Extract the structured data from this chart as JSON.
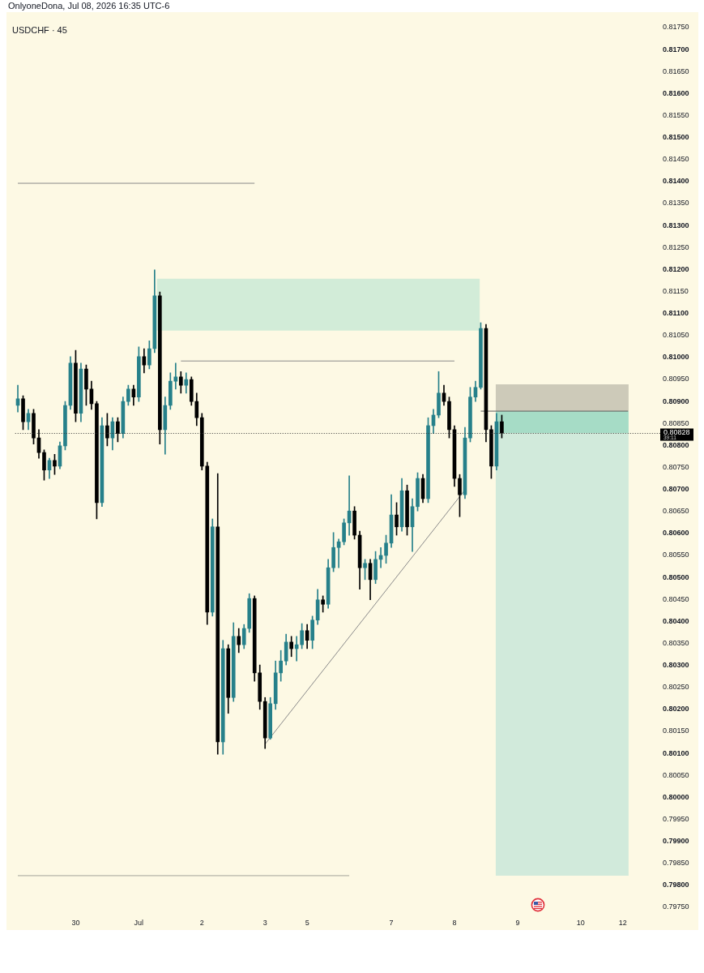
{
  "chart_data": {
    "type": "candlestick",
    "title": "USDCHF · 45",
    "annotations": [
      "OnlyoneDona, Jul 08, 2026 16:35 UTC-6",
      "39:11"
    ],
    "categories": [
      null,
      null,
      null,
      null,
      null,
      null,
      null,
      null,
      null,
      null,
      null,
      "30",
      null,
      null,
      null,
      null,
      null,
      null,
      null,
      null,
      null,
      null,
      null,
      "Jul",
      null,
      null,
      null,
      null,
      null,
      null,
      null,
      null,
      null,
      null,
      null,
      "2",
      null,
      null,
      null,
      null,
      null,
      null,
      null,
      null,
      null,
      null,
      null,
      "3",
      null,
      null,
      null,
      null,
      null,
      null,
      null,
      "5",
      null,
      null,
      null,
      null,
      null,
      null,
      null,
      null,
      null,
      null,
      null,
      null,
      null,
      null,
      null,
      "7",
      null,
      null,
      null,
      null,
      null,
      null,
      null,
      null,
      null,
      null,
      null,
      "8",
      null,
      null,
      null,
      null,
      null,
      null,
      null,
      null,
      null,
      null,
      null,
      "9",
      null,
      null,
      null,
      null,
      null,
      null,
      null,
      null,
      null,
      null,
      null,
      "10",
      null,
      null,
      null,
      null,
      null,
      null,
      null,
      "12",
      null,
      null
    ],
    "ohlc": [
      [
        0.80891,
        0.80937,
        0.80876,
        0.80906
      ],
      [
        0.80906,
        0.80913,
        0.80836,
        0.80854
      ],
      [
        0.80854,
        0.80882,
        0.80836,
        0.80873
      ],
      [
        0.80873,
        0.80882,
        0.80803,
        0.80817
      ],
      [
        0.80817,
        0.80836,
        0.80771,
        0.80784
      ],
      [
        0.80784,
        0.8079,
        0.80721,
        0.80744
      ],
      [
        0.80744,
        0.80771,
        0.80725,
        0.80766
      ],
      [
        0.80766,
        0.8078,
        0.80734,
        0.80753
      ],
      [
        0.80753,
        0.80808,
        0.80747,
        0.80799
      ],
      [
        0.80799,
        0.809,
        0.8079,
        0.80891
      ],
      [
        0.80891,
        0.81002,
        0.80882,
        0.80987
      ],
      [
        0.80987,
        0.81016,
        0.80854,
        0.80873
      ],
      [
        0.80873,
        0.80987,
        0.80854,
        0.80974
      ],
      [
        0.80974,
        0.80983,
        0.80891,
        0.80928
      ],
      [
        0.80928,
        0.80946,
        0.80882,
        0.80895
      ],
      [
        0.80895,
        0.809,
        0.80633,
        0.8067
      ],
      [
        0.8067,
        0.80863,
        0.80661,
        0.80845
      ],
      [
        0.80845,
        0.80873,
        0.80799,
        0.80817
      ],
      [
        0.80817,
        0.80863,
        0.8079,
        0.80854
      ],
      [
        0.80854,
        0.80863,
        0.80808,
        0.80827
      ],
      [
        0.80827,
        0.8091,
        0.80817,
        0.809
      ],
      [
        0.809,
        0.80937,
        0.80891,
        0.80928
      ],
      [
        0.80928,
        0.80937,
        0.80891,
        0.8091
      ],
      [
        0.8091,
        0.81024,
        0.809,
        0.81002
      ],
      [
        0.81002,
        0.8102,
        0.80965,
        0.80983
      ],
      [
        0.80983,
        0.81038,
        0.80974,
        0.8102
      ],
      [
        0.8102,
        0.81199,
        0.81011,
        0.8114
      ],
      [
        0.8114,
        0.81149,
        0.80803,
        0.80836
      ],
      [
        0.80836,
        0.8091,
        0.8078,
        0.80891
      ],
      [
        0.80891,
        0.80965,
        0.80882,
        0.80946
      ],
      [
        0.80946,
        0.80987,
        0.80928,
        0.80956
      ],
      [
        0.80956,
        0.80968,
        0.80919,
        0.80937
      ],
      [
        0.80937,
        0.80965,
        0.80919,
        0.8095
      ],
      [
        0.8095,
        0.80956,
        0.80891,
        0.809
      ],
      [
        0.809,
        0.80919,
        0.80845,
        0.80863
      ],
      [
        0.80863,
        0.80873,
        0.80744,
        0.80753
      ],
      [
        0.80753,
        0.80762,
        0.80393,
        0.80421
      ],
      [
        0.80421,
        0.80633,
        0.80412,
        0.80615
      ],
      [
        0.80615,
        0.80736,
        0.80098,
        0.80126
      ],
      [
        0.80126,
        0.80357,
        0.80098,
        0.80338
      ],
      [
        0.80338,
        0.80347,
        0.80191,
        0.80227
      ],
      [
        0.80227,
        0.80397,
        0.80218,
        0.80366
      ],
      [
        0.80366,
        0.80384,
        0.80329,
        0.80347
      ],
      [
        0.80347,
        0.80393,
        0.80338,
        0.80384
      ],
      [
        0.80384,
        0.80463,
        0.80375,
        0.80452
      ],
      [
        0.80452,
        0.80458,
        0.80264,
        0.80283
      ],
      [
        0.80283,
        0.80301,
        0.802,
        0.80218
      ],
      [
        0.80218,
        0.80227,
        0.80111,
        0.80135
      ],
      [
        0.80135,
        0.80227,
        0.80132,
        0.80213
      ],
      [
        0.80213,
        0.8031,
        0.802,
        0.80283
      ],
      [
        0.80283,
        0.80334,
        0.80264,
        0.8031
      ],
      [
        0.8031,
        0.80371,
        0.80301,
        0.80353
      ],
      [
        0.80353,
        0.80366,
        0.8032,
        0.80338
      ],
      [
        0.80338,
        0.80366,
        0.8031,
        0.80347
      ],
      [
        0.80347,
        0.80395,
        0.80338,
        0.80379
      ],
      [
        0.80379,
        0.80393,
        0.80338,
        0.80357
      ],
      [
        0.80357,
        0.80412,
        0.80338,
        0.80403
      ],
      [
        0.80403,
        0.80473,
        0.80393,
        0.80449
      ],
      [
        0.80449,
        0.80458,
        0.80421,
        0.80439
      ],
      [
        0.80439,
        0.80541,
        0.8043,
        0.80522
      ],
      [
        0.80522,
        0.80602,
        0.80513,
        0.80568
      ],
      [
        0.80568,
        0.80587,
        0.80522,
        0.80581
      ],
      [
        0.80581,
        0.80633,
        0.80574,
        0.80624
      ],
      [
        0.80624,
        0.80731,
        0.80596,
        0.80651
      ],
      [
        0.80651,
        0.80661,
        0.80587,
        0.80596
      ],
      [
        0.80596,
        0.80605,
        0.80473,
        0.80522
      ],
      [
        0.80522,
        0.80541,
        0.80495,
        0.80532
      ],
      [
        0.80532,
        0.80541,
        0.80449,
        0.80495
      ],
      [
        0.80495,
        0.80559,
        0.80486,
        0.80541
      ],
      [
        0.80541,
        0.80568,
        0.80522,
        0.8055
      ],
      [
        0.8055,
        0.80596,
        0.80532,
        0.80578
      ],
      [
        0.80578,
        0.80688,
        0.80568,
        0.80642
      ],
      [
        0.80642,
        0.8067,
        0.80596,
        0.80615
      ],
      [
        0.80615,
        0.80725,
        0.80605,
        0.80697
      ],
      [
        0.80697,
        0.8071,
        0.80596,
        0.80615
      ],
      [
        0.80615,
        0.80679,
        0.80559,
        0.80661
      ],
      [
        0.80661,
        0.80738,
        0.80651,
        0.80725
      ],
      [
        0.80725,
        0.80734,
        0.8067,
        0.80679
      ],
      [
        0.80679,
        0.80863,
        0.8067,
        0.80845
      ],
      [
        0.80845,
        0.80882,
        0.80827,
        0.80869
      ],
      [
        0.80869,
        0.80968,
        0.80863,
        0.80919
      ],
      [
        0.80919,
        0.80937,
        0.80891,
        0.809
      ],
      [
        0.809,
        0.8091,
        0.80817,
        0.80836
      ],
      [
        0.80836,
        0.80845,
        0.80707,
        0.80725
      ],
      [
        0.80725,
        0.80734,
        0.80638,
        0.80688
      ],
      [
        0.80688,
        0.80841,
        0.80679,
        0.80817
      ],
      [
        0.80817,
        0.80932,
        0.80808,
        0.8091
      ],
      [
        0.8091,
        0.80946,
        0.809,
        0.80932
      ],
      [
        0.80932,
        0.81079,
        0.80928,
        0.81066
      ],
      [
        0.81066,
        0.81075,
        0.80808,
        0.80836
      ],
      [
        0.80836,
        0.80845,
        0.80725,
        0.80753
      ],
      [
        0.80753,
        0.80873,
        0.80744,
        0.80854
      ],
      [
        0.80854,
        0.80869,
        0.80817,
        0.80828
      ],
      null,
      null,
      null,
      null,
      null,
      null,
      null,
      null,
      null,
      null,
      null,
      null,
      null,
      null,
      null,
      null,
      null,
      null,
      null,
      null,
      null,
      null,
      null,
      null,
      null
    ],
    "colors": [
      "#26808a",
      "#000000",
      "#26808a",
      "#000000",
      "#000000",
      "#000000",
      "#26808a",
      "#000000",
      "#26808a",
      "#26808a",
      "#26808a",
      "#000000",
      "#26808a",
      "#000000",
      "#000000",
      "#000000",
      "#26808a",
      "#000000",
      "#26808a",
      "#000000",
      "#26808a",
      "#26808a",
      "#000000",
      "#26808a",
      "#000000",
      "#26808a",
      "#26808a",
      "#000000",
      "#26808a",
      "#26808a",
      "#26808a",
      "#000000",
      "#26808a",
      "#000000",
      "#000000",
      "#000000",
      "#000000",
      "#26808a",
      "#000000",
      "#26808a",
      "#000000",
      "#26808a",
      "#000000",
      "#26808a",
      "#26808a",
      "#000000",
      "#000000",
      "#000000",
      "#26808a",
      "#26808a",
      "#26808a",
      "#26808a",
      "#000000",
      "#26808a",
      "#26808a",
      "#000000",
      "#26808a",
      "#26808a",
      "#000000",
      "#26808a",
      "#26808a",
      "#26808a",
      "#26808a",
      "#26808a",
      "#000000",
      "#000000",
      "#26808a",
      "#000000",
      "#26808a",
      "#26808a",
      "#26808a",
      "#26808a",
      "#000000",
      "#26808a",
      "#000000",
      "#26808a",
      "#26808a",
      "#000000",
      "#26808a",
      "#26808a",
      "#26808a",
      "#000000",
      "#000000",
      "#000000",
      "#000000",
      "#26808a",
      "#26808a",
      "#26808a",
      "#26808a",
      "#000000",
      "#000000",
      "#26808a",
      "#000000",
      null,
      null,
      null,
      null,
      null,
      null,
      null,
      null,
      null,
      null,
      null,
      null,
      null,
      null,
      null,
      null,
      null,
      null,
      null,
      null,
      null,
      null,
      null,
      null,
      null
    ],
    "series": [
      {
        "type": "line",
        "color": "#8a8a8a",
        "values": [
          0.81396,
          null,
          null,
          null,
          null,
          null,
          null,
          null,
          null,
          null,
          null,
          null,
          null,
          null,
          null,
          null,
          null,
          null,
          null,
          null,
          null,
          null,
          null,
          null,
          null,
          null,
          null,
          null,
          null,
          null,
          null,
          null,
          null,
          null,
          null,
          null,
          null,
          null,
          null,
          null,
          null,
          null,
          null,
          null,
          null,
          0.81396,
          null,
          null,
          null,
          null,
          null,
          null,
          null,
          null,
          null,
          null,
          null,
          null,
          null,
          null,
          null,
          null,
          null,
          null,
          null,
          null,
          null,
          null,
          null,
          null,
          null,
          null,
          null,
          null,
          null,
          null,
          null,
          null,
          null,
          null,
          null,
          null,
          null,
          null,
          null,
          null,
          null,
          null,
          null,
          null,
          null,
          null,
          null,
          null,
          null,
          null,
          null,
          null,
          null,
          null,
          null,
          null,
          null,
          null,
          null,
          null,
          null,
          null,
          null,
          null,
          null,
          null,
          null,
          null,
          null,
          null,
          null,
          null
        ]
      },
      {
        "type": "line",
        "color": "#8a8a8a",
        "values": [
          null,
          null,
          null,
          null,
          null,
          null,
          null,
          null,
          null,
          null,
          null,
          null,
          null,
          null,
          null,
          null,
          null,
          null,
          null,
          null,
          null,
          null,
          null,
          null,
          null,
          null,
          null,
          null,
          null,
          null,
          null,
          0.80992,
          null,
          null,
          null,
          null,
          null,
          null,
          null,
          null,
          null,
          null,
          null,
          null,
          null,
          null,
          null,
          null,
          null,
          null,
          null,
          null,
          null,
          null,
          null,
          null,
          null,
          null,
          null,
          null,
          null,
          null,
          null,
          null,
          null,
          null,
          null,
          null,
          null,
          null,
          null,
          null,
          null,
          null,
          null,
          null,
          null,
          null,
          null,
          null,
          null,
          null,
          null,
          0.80992,
          null,
          null,
          null,
          null,
          null,
          null,
          null,
          null,
          null,
          null,
          null,
          null,
          null,
          null,
          null,
          null,
          null,
          null,
          null,
          null,
          null,
          null,
          null,
          null,
          null,
          null,
          null,
          null,
          null,
          null,
          null,
          null,
          null,
          null
        ]
      },
      {
        "type": "line",
        "color": "#8a8a8a",
        "values": [
          null,
          null,
          null,
          null,
          null,
          null,
          null,
          null,
          null,
          null,
          null,
          null,
          null,
          null,
          null,
          null,
          null,
          null,
          null,
          null,
          null,
          null,
          null,
          null,
          null,
          null,
          null,
          null,
          null,
          null,
          null,
          null,
          null,
          null,
          null,
          null,
          null,
          null,
          null,
          null,
          null,
          null,
          null,
          null,
          null,
          null,
          null,
          0.80121,
          null,
          null,
          null,
          null,
          null,
          null,
          null,
          null,
          null,
          null,
          null,
          null,
          null,
          null,
          null,
          null,
          null,
          null,
          null,
          null,
          null,
          null,
          null,
          null,
          null,
          null,
          null,
          null,
          null,
          null,
          null,
          null,
          null,
          null,
          null,
          null,
          null,
          0.80699,
          null,
          null,
          null,
          null,
          null,
          null,
          null,
          null,
          null,
          null,
          null,
          null,
          null,
          null,
          null,
          null,
          null,
          null,
          null,
          null,
          null,
          null,
          null,
          null,
          null,
          null,
          null,
          null,
          null,
          null,
          null,
          null
        ]
      },
      {
        "type": "line",
        "color": "#a3a39a",
        "values": [
          0.79822,
          null,
          null,
          null,
          null,
          null,
          null,
          null,
          null,
          null,
          null,
          null,
          null,
          null,
          null,
          null,
          null,
          null,
          null,
          null,
          null,
          null,
          null,
          null,
          null,
          null,
          null,
          null,
          null,
          null,
          null,
          null,
          null,
          null,
          null,
          null,
          null,
          null,
          null,
          null,
          null,
          null,
          null,
          null,
          null,
          null,
          null,
          null,
          null,
          null,
          null,
          null,
          null,
          null,
          null,
          null,
          null,
          null,
          null,
          null,
          null,
          null,
          null,
          0.79822,
          null,
          null,
          null,
          null,
          null,
          null,
          null,
          null,
          null,
          null,
          null,
          null,
          null,
          null,
          null,
          null,
          null,
          null,
          null,
          null,
          null,
          null,
          null,
          null,
          null,
          null,
          null,
          null,
          null,
          null,
          null,
          null,
          null,
          null,
          null,
          null,
          null,
          null,
          null,
          null,
          null,
          null,
          null,
          null,
          null,
          null,
          null,
          null,
          null,
          null,
          null,
          null,
          null,
          null
        ]
      },
      {
        "type": "line",
        "color": "#5d5d5d",
        "values": [
          null,
          null,
          null,
          null,
          null,
          null,
          null,
          null,
          null,
          null,
          null,
          null,
          null,
          null,
          null,
          null,
          null,
          null,
          null,
          null,
          null,
          null,
          null,
          null,
          null,
          null,
          null,
          null,
          null,
          null,
          null,
          null,
          null,
          null,
          null,
          null,
          null,
          null,
          null,
          null,
          null,
          null,
          null,
          null,
          null,
          null,
          null,
          null,
          null,
          null,
          null,
          null,
          null,
          null,
          null,
          null,
          null,
          null,
          null,
          null,
          null,
          null,
          null,
          null,
          null,
          null,
          null,
          null,
          null,
          null,
          null,
          null,
          null,
          null,
          null,
          null,
          null,
          null,
          null,
          null,
          null,
          null,
          null,
          null,
          null,
          null,
          null,
          null,
          0.80878,
          null,
          null,
          null,
          null,
          null,
          null,
          null,
          null,
          null,
          null,
          null,
          null,
          null,
          null,
          null,
          null,
          null,
          null,
          null,
          null,
          null,
          null,
          null,
          null,
          null,
          null,
          null,
          0.80878,
          null
        ]
      }
    ],
    "bands": [
      {
        "axis": "y",
        "from": 0.81061,
        "to": 0.81179,
        "color": "#d2ecd8"
      },
      {
        "axis": "y",
        "from": 0.80878,
        "to": 0.80939,
        "color": "#cdcab9"
      },
      {
        "axis": "y",
        "from": 0.80828,
        "to": 0.80878,
        "color": "#a6dcc6"
      },
      {
        "axis": "y",
        "from": 0.79822,
        "to": 0.80828,
        "color": "#d1eadb"
      }
    ],
    "ref_lines": [
      {
        "axis": "y",
        "value": 0.80828,
        "label": "0.80828",
        "color": "#333333",
        "line_style": "dotted"
      }
    ],
    "ylim": [
      0.7975,
      0.8175
    ],
    "yticks": [
      {
        "value": 0.7975,
        "label": "0.79750"
      },
      {
        "value": 0.798,
        "label": "0.79800"
      },
      {
        "value": 0.7985,
        "label": "0.79850"
      },
      {
        "value": 0.799,
        "label": "0.79900"
      },
      {
        "value": 0.7995,
        "label": "0.79950"
      },
      {
        "value": 0.8,
        "label": "0.80000"
      },
      {
        "value": 0.8005,
        "label": "0.80050"
      },
      {
        "value": 0.801,
        "label": "0.80100"
      },
      {
        "value": 0.8015,
        "label": "0.80150"
      },
      {
        "value": 0.802,
        "label": "0.80200"
      },
      {
        "value": 0.8025,
        "label": "0.80250"
      },
      {
        "value": 0.803,
        "label": "0.80300"
      },
      {
        "value": 0.8035,
        "label": "0.80350"
      },
      {
        "value": 0.804,
        "label": "0.80400"
      },
      {
        "value": 0.8045,
        "label": "0.80450"
      },
      {
        "value": 0.805,
        "label": "0.80500"
      },
      {
        "value": 0.8055,
        "label": "0.80550"
      },
      {
        "value": 0.806,
        "label": "0.80600"
      },
      {
        "value": 0.8065,
        "label": "0.80650"
      },
      {
        "value": 0.807,
        "label": "0.80700"
      },
      {
        "value": 0.8075,
        "label": "0.80750"
      },
      {
        "value": 0.808,
        "label": "0.80800"
      },
      {
        "value": 0.8085,
        "label": "0.80850"
      },
      {
        "value": 0.809,
        "label": "0.80900"
      },
      {
        "value": 0.8095,
        "label": "0.80950"
      },
      {
        "value": 0.81,
        "label": "0.81000"
      },
      {
        "value": 0.8105,
        "label": "0.81050"
      },
      {
        "value": 0.811,
        "label": "0.81100"
      },
      {
        "value": 0.8115,
        "label": "0.81150"
      },
      {
        "value": 0.812,
        "label": "0.81200"
      },
      {
        "value": 0.8125,
        "label": "0.81250"
      },
      {
        "value": 0.813,
        "label": "0.81300"
      },
      {
        "value": 0.8135,
        "label": "0.81350"
      },
      {
        "value": 0.814,
        "label": "0.81400"
      },
      {
        "value": 0.8145,
        "label": "0.81450"
      },
      {
        "value": 0.815,
        "label": "0.81500"
      },
      {
        "value": 0.8155,
        "label": "0.81550"
      },
      {
        "value": 0.816,
        "label": "0.81600"
      },
      {
        "value": 0.8165,
        "label": "0.81650"
      },
      {
        "value": 0.817,
        "label": "0.81700"
      },
      {
        "value": 0.8175,
        "label": "0.81750"
      }
    ]
  }
}
